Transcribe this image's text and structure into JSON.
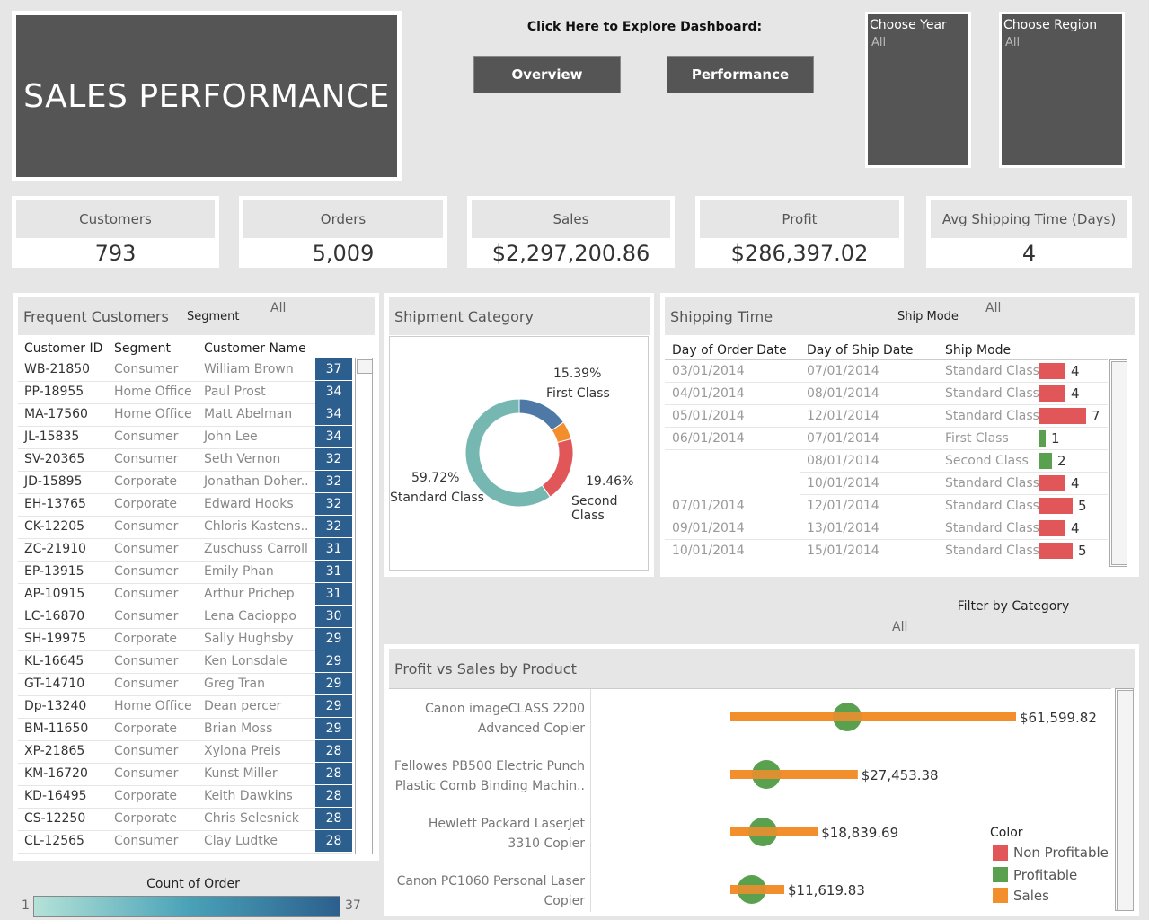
{
  "title": "SALES PERFORMANCE",
  "explore_label": "Click Here to Explore Dashboard:",
  "nav": {
    "overview": "Overview",
    "performance": "Performance"
  },
  "filters": {
    "year": {
      "label": "Choose Year",
      "value": "All"
    },
    "region": {
      "label": "Choose Region",
      "value": "All"
    }
  },
  "kpis": [
    {
      "label": "Customers",
      "value": "793"
    },
    {
      "label": "Orders",
      "value": "5,009"
    },
    {
      "label": "Sales",
      "value": "$2,297,200.86"
    },
    {
      "label": "Profit",
      "value": "$286,397.02"
    },
    {
      "label": "Avg Shipping Time (Days)",
      "value": "4"
    }
  ],
  "frequent_customers": {
    "title": "Frequent Customers",
    "segment_filter_label": "Segment",
    "segment_filter_value": "All",
    "columns": [
      "Customer ID",
      "Segment",
      "Customer Name"
    ],
    "rows": [
      {
        "id": "WB-21850",
        "segment": "Consumer",
        "name": "William Brown",
        "count": "37"
      },
      {
        "id": "PP-18955",
        "segment": "Home Office",
        "name": "Paul Prost",
        "count": "34"
      },
      {
        "id": "MA-17560",
        "segment": "Home Office",
        "name": "Matt Abelman",
        "count": "34"
      },
      {
        "id": "JL-15835",
        "segment": "Consumer",
        "name": "John Lee",
        "count": "34"
      },
      {
        "id": "SV-20365",
        "segment": "Consumer",
        "name": "Seth Vernon",
        "count": "32"
      },
      {
        "id": "JD-15895",
        "segment": "Corporate",
        "name": "Jonathan Doher..",
        "count": "32"
      },
      {
        "id": "EH-13765",
        "segment": "Corporate",
        "name": "Edward Hooks",
        "count": "32"
      },
      {
        "id": "CK-12205",
        "segment": "Consumer",
        "name": "Chloris Kastens..",
        "count": "32"
      },
      {
        "id": "ZC-21910",
        "segment": "Consumer",
        "name": "Zuschuss Carroll",
        "count": "31"
      },
      {
        "id": "EP-13915",
        "segment": "Consumer",
        "name": "Emily Phan",
        "count": "31"
      },
      {
        "id": "AP-10915",
        "segment": "Consumer",
        "name": "Arthur Prichep",
        "count": "31"
      },
      {
        "id": "LC-16870",
        "segment": "Consumer",
        "name": "Lena Cacioppo",
        "count": "30"
      },
      {
        "id": "SH-19975",
        "segment": "Corporate",
        "name": "Sally Hughsby",
        "count": "29"
      },
      {
        "id": "KL-16645",
        "segment": "Consumer",
        "name": "Ken Lonsdale",
        "count": "29"
      },
      {
        "id": "GT-14710",
        "segment": "Consumer",
        "name": "Greg Tran",
        "count": "29"
      },
      {
        "id": "Dp-13240",
        "segment": "Home Office",
        "name": "Dean percer",
        "count": "29"
      },
      {
        "id": "BM-11650",
        "segment": "Corporate",
        "name": "Brian Moss",
        "count": "29"
      },
      {
        "id": "XP-21865",
        "segment": "Consumer",
        "name": "Xylona Preis",
        "count": "28"
      },
      {
        "id": "KM-16720",
        "segment": "Consumer",
        "name": "Kunst Miller",
        "count": "28"
      },
      {
        "id": "KD-16495",
        "segment": "Corporate",
        "name": "Keith Dawkins",
        "count": "28"
      },
      {
        "id": "CS-12250",
        "segment": "Corporate",
        "name": "Chris Selesnick",
        "count": "28"
      },
      {
        "id": "CL-12565",
        "segment": "Consumer",
        "name": "Clay Ludtke",
        "count": "28"
      }
    ],
    "legend": {
      "title": "Count of Order",
      "min": "1",
      "max": "37"
    }
  },
  "shipment_category": {
    "title": "Shipment Category",
    "slices": [
      {
        "pct": "15.39%",
        "label": "First Class",
        "value": 15.39,
        "color": "#4e79a7"
      },
      {
        "pct": "",
        "label": "",
        "value": 5.43,
        "color": "#f28e2b"
      },
      {
        "pct": "19.46%",
        "label": "Second Class",
        "value": 19.46,
        "color": "#e15759"
      },
      {
        "pct": "59.72%",
        "label": "Standard Class",
        "value": 59.72,
        "color": "#76b7b2"
      }
    ]
  },
  "shipping_time": {
    "title": "Shipping Time",
    "ship_mode_label": "Ship Mode",
    "ship_mode_value": "All",
    "columns": [
      "Day of Order Date",
      "Day of Ship Date",
      "Ship Mode"
    ],
    "rows": [
      {
        "order": "03/01/2014",
        "ship": "07/01/2014",
        "mode": "Standard Class",
        "days": 4
      },
      {
        "order": "04/01/2014",
        "ship": "08/01/2014",
        "mode": "Standard Class",
        "days": 4
      },
      {
        "order": "05/01/2014",
        "ship": "12/01/2014",
        "mode": "Standard Class",
        "days": 7
      },
      {
        "order": "06/01/2014",
        "ship": "07/01/2014",
        "mode": "First Class",
        "days": 1
      },
      {
        "order": "",
        "ship": "08/01/2014",
        "mode": "Second Class",
        "days": 2
      },
      {
        "order": "",
        "ship": "10/01/2014",
        "mode": "Standard Class",
        "days": 4
      },
      {
        "order": "07/01/2014",
        "ship": "12/01/2014",
        "mode": "Standard Class",
        "days": 5
      },
      {
        "order": "09/01/2014",
        "ship": "13/01/2014",
        "mode": "Standard Class",
        "days": 4
      },
      {
        "order": "10/01/2014",
        "ship": "15/01/2014",
        "mode": "Standard Class",
        "days": 5
      }
    ]
  },
  "category_filter": {
    "label": "Filter by Category",
    "value": "All"
  },
  "chart_data": {
    "type": "bar",
    "title": "Profit vs Sales by Product",
    "categories": [
      [
        "Canon imageCLASS 2200",
        "Advanced Copier"
      ],
      [
        "Fellowes PB500 Electric Punch",
        "Plastic Comb Binding Machin.."
      ],
      [
        "Hewlett Packard LaserJet",
        "3310 Copier"
      ],
      [
        "Canon PC1060 Personal Laser",
        "Copier"
      ]
    ],
    "sales": [
      61599.82,
      27453.38,
      18839.69,
      11619.83
    ],
    "sales_labels": [
      "$61,599.82",
      "$27,453.38",
      "$18,839.69",
      "$11,619.83"
    ],
    "profit": [
      25200,
      7750,
      7000,
      4600
    ],
    "legend": {
      "title": "Color",
      "items": [
        {
          "label": "Non Profitable",
          "color": "#e15759"
        },
        {
          "label": "Profitable",
          "color": "#59a14f"
        },
        {
          "label": "Sales",
          "color": "#f28e2b"
        }
      ]
    }
  }
}
